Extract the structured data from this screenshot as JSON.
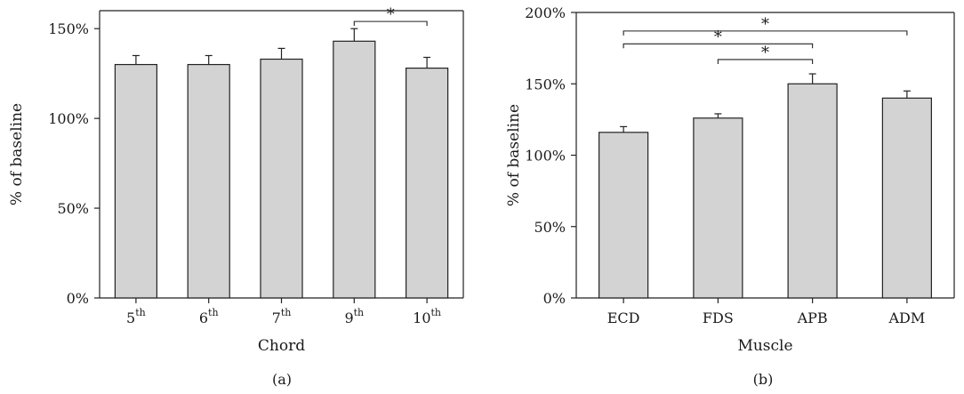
{
  "chart_data": [
    {
      "type": "bar",
      "panel_label": "(a)",
      "xlabel": "Chord",
      "ylabel": "% of baseline",
      "ylim": [
        0,
        160
      ],
      "yticks": [
        0,
        50,
        100,
        150
      ],
      "ytick_labels": [
        "0%",
        "50%",
        "100%",
        "150%"
      ],
      "categories": [
        {
          "base": "5",
          "sup": "th"
        },
        {
          "base": "6",
          "sup": "th"
        },
        {
          "base": "7",
          "sup": "th"
        },
        {
          "base": "9",
          "sup": "th"
        },
        {
          "base": "10",
          "sup": "th"
        }
      ],
      "values": [
        130,
        130,
        133,
        143,
        128
      ],
      "errors": [
        5,
        5,
        6,
        7,
        6
      ],
      "significance": [
        {
          "from": 3,
          "to": 4,
          "y": 154,
          "label": "*"
        }
      ],
      "bar_color": "#d3d3d3",
      "grid": false
    },
    {
      "type": "bar",
      "panel_label": "(b)",
      "xlabel": "Muscle",
      "ylabel": "% of baseline",
      "ylim": [
        0,
        200
      ],
      "yticks": [
        0,
        50,
        100,
        150,
        200
      ],
      "ytick_labels": [
        "0%",
        "50%",
        "100%",
        "150%",
        "200%"
      ],
      "categories": [
        {
          "base": "ECD",
          "sup": ""
        },
        {
          "base": "FDS",
          "sup": ""
        },
        {
          "base": "APB",
          "sup": ""
        },
        {
          "base": "ADM",
          "sup": ""
        }
      ],
      "values": [
        116,
        126,
        150,
        140
      ],
      "errors": [
        4,
        3,
        7,
        5
      ],
      "significance": [
        {
          "from": 0,
          "to": 3,
          "y": 187,
          "label": "*"
        },
        {
          "from": 0,
          "to": 2,
          "y": 178,
          "label": "*"
        },
        {
          "from": 1,
          "to": 2,
          "y": 167,
          "label": "*"
        }
      ],
      "bar_color": "#d3d3d3",
      "grid": false
    }
  ]
}
